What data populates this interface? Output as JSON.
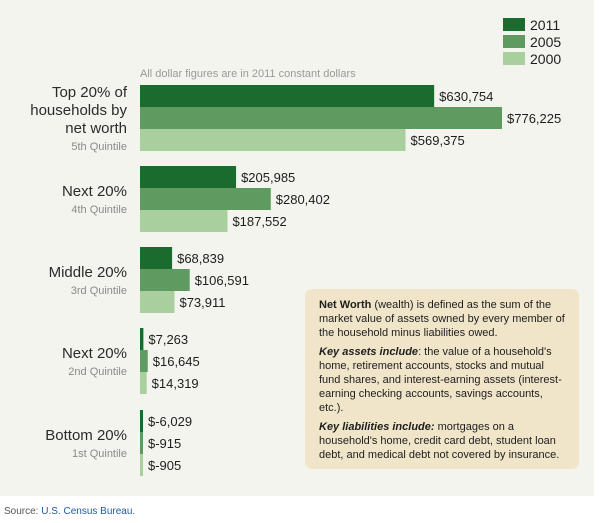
{
  "chart_data": {
    "type": "bar",
    "orientation": "horizontal",
    "subtitle": "All dollar figures are in 2011 constant dollars",
    "legend": [
      "2011",
      "2005",
      "2000"
    ],
    "legend_position": "top-right",
    "colors": {
      "2011": "#1c6b2e",
      "2005": "#5f9a60",
      "2000": "#a9cf9f"
    },
    "groups": [
      {
        "label_lines": [
          "Top 20% of",
          "households by",
          "net worth"
        ],
        "sub": "5th Quintile",
        "values": [
          630754,
          776225,
          569375
        ],
        "labels": [
          "$630,754",
          "$776,225",
          "$569,375"
        ]
      },
      {
        "label_lines": [
          "Next 20%"
        ],
        "sub": "4th Quintile",
        "values": [
          205985,
          280402,
          187552
        ],
        "labels": [
          "$205,985",
          "$280,402",
          "$187,552"
        ]
      },
      {
        "label_lines": [
          "Middle 20%"
        ],
        "sub": "3rd Quintile",
        "values": [
          68839,
          106591,
          73911
        ],
        "labels": [
          "$68,839",
          "$106,591",
          "$73,911"
        ]
      },
      {
        "label_lines": [
          "Next 20%"
        ],
        "sub": "2nd Quintile",
        "values": [
          7263,
          16645,
          14319
        ],
        "labels": [
          "$7,263",
          "$16,645",
          "$14,319"
        ]
      },
      {
        "label_lines": [
          "Bottom 20%"
        ],
        "sub": "1st Quintile",
        "values": [
          -6029,
          -915,
          -905
        ],
        "labels": [
          "$-6,029",
          "$-915",
          "$-905"
        ]
      }
    ],
    "xlim": [
      0,
      776225
    ]
  },
  "note": {
    "p1_bold": "Net Worth",
    "p1_text": " (wealth) is defined as the sum of the market value of assets owned by every member of the household minus liabilities owed.",
    "p2_bold": "Key assets include",
    "p2_text": ": the value of a household's home, retirement accounts, stocks and mutual fund shares, and interest-earning assets (interest-earning checking accounts, savings accounts, etc.).",
    "p3_bold": "Key liabilities include:",
    "p3_text": " mortgages on a household's home, credit card debt, student loan debt, and medical debt not covered by insurance."
  },
  "source": {
    "prefix": "Source: ",
    "link": "U.S. Census Bureau",
    "suffix": "."
  }
}
